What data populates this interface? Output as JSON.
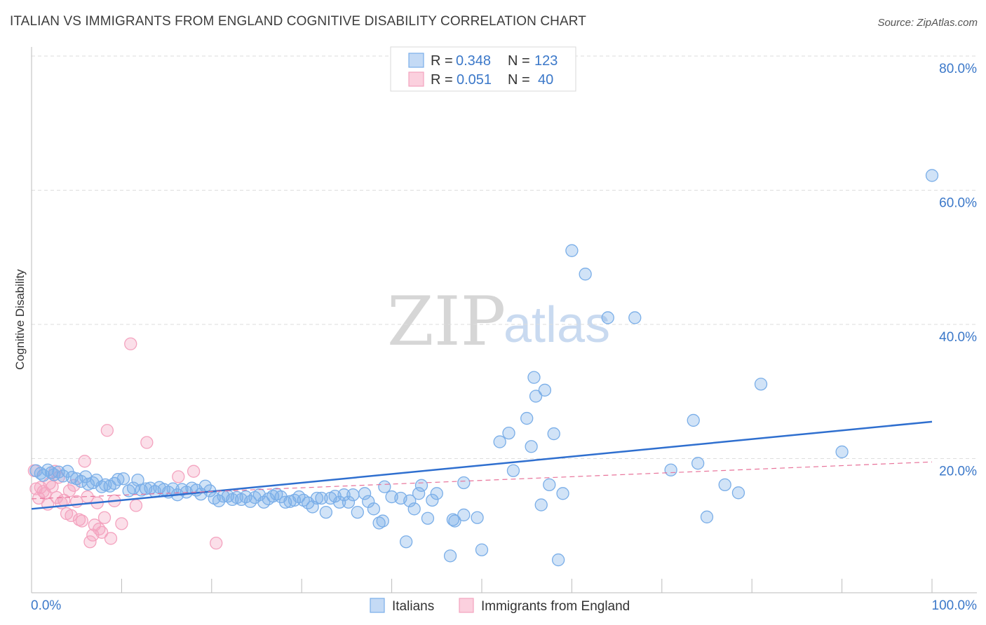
{
  "title": "ITALIAN VS IMMIGRANTS FROM ENGLAND COGNITIVE DISABILITY CORRELATION CHART",
  "source": "Source: ZipAtlas.com",
  "watermark": {
    "zip": "ZIP",
    "atlas": "atlas"
  },
  "legend_box": {
    "rows": [
      {
        "r_label": "R =",
        "r_value": "0.348",
        "n_label": "N =",
        "n_value": "123"
      },
      {
        "r_label": "R =",
        "r_value": "0.051",
        "n_label": "N =",
        "n_value": "40"
      }
    ]
  },
  "colors": {
    "italians": "#7aaee8",
    "italians_line": "#2f6fcf",
    "england": "#f4a3bf",
    "england_line": "#e8739a",
    "grid": "#dddddd"
  },
  "chart_data": {
    "type": "scatter",
    "title": "ITALIAN VS IMMIGRANTS FROM ENGLAND COGNITIVE DISABILITY CORRELATION CHART",
    "xlabel": "",
    "ylabel": "Cognitive Disability",
    "xlim": [
      0,
      100
    ],
    "ylim": [
      0,
      80
    ],
    "x_tick_labels": [
      "0.0%",
      "100.0%"
    ],
    "y_ticks": [
      20,
      40,
      60,
      80
    ],
    "y_tick_labels": [
      "20.0%",
      "40.0%",
      "60.0%",
      "80.0%"
    ],
    "grid": true,
    "legend_position": "bottom-center",
    "series": [
      {
        "name": "Italians",
        "r": 0.348,
        "n": 123,
        "trend": {
          "x": [
            0,
            100
          ],
          "y": [
            12.5,
            25.5
          ]
        },
        "points": [
          [
            0.5,
            18.2
          ],
          [
            1.0,
            17.8
          ],
          [
            1.3,
            17.5
          ],
          [
            1.8,
            18.3
          ],
          [
            2.2,
            17.9
          ],
          [
            2.5,
            17.6
          ],
          [
            3.0,
            18.0
          ],
          [
            3.5,
            17.4
          ],
          [
            4.0,
            18.1
          ],
          [
            4.5,
            17.2
          ],
          [
            5.0,
            17.0
          ],
          [
            5.5,
            16.6
          ],
          [
            6.0,
            17.3
          ],
          [
            6.3,
            16.2
          ],
          [
            6.8,
            16.4
          ],
          [
            7.2,
            16.8
          ],
          [
            7.8,
            15.8
          ],
          [
            8.2,
            16.1
          ],
          [
            8.7,
            15.9
          ],
          [
            9.2,
            16.3
          ],
          [
            9.6,
            16.9
          ],
          [
            10.2,
            17.0
          ],
          [
            10.8,
            15.2
          ],
          [
            11.3,
            15.6
          ],
          [
            11.8,
            16.8
          ],
          [
            12.2,
            15.3
          ],
          [
            12.7,
            15.5
          ],
          [
            13.2,
            15.6
          ],
          [
            13.7,
            15.1
          ],
          [
            14.2,
            15.7
          ],
          [
            14.7,
            15.4
          ],
          [
            15.2,
            15.0
          ],
          [
            15.7,
            15.5
          ],
          [
            16.2,
            14.6
          ],
          [
            16.7,
            15.4
          ],
          [
            17.2,
            15.0
          ],
          [
            17.8,
            15.6
          ],
          [
            18.3,
            15.3
          ],
          [
            18.8,
            14.7
          ],
          [
            19.3,
            15.9
          ],
          [
            19.8,
            15.2
          ],
          [
            20.3,
            14.1
          ],
          [
            20.8,
            13.7
          ],
          [
            21.3,
            14.4
          ],
          [
            21.8,
            14.4
          ],
          [
            22.3,
            13.9
          ],
          [
            22.8,
            14.2
          ],
          [
            23.3,
            13.9
          ],
          [
            23.8,
            14.3
          ],
          [
            24.3,
            13.6
          ],
          [
            24.8,
            14.2
          ],
          [
            25.3,
            14.6
          ],
          [
            25.8,
            13.5
          ],
          [
            26.3,
            14.0
          ],
          [
            26.8,
            14.4
          ],
          [
            27.2,
            14.7
          ],
          [
            27.7,
            14.3
          ],
          [
            28.2,
            13.5
          ],
          [
            28.7,
            13.6
          ],
          [
            29.2,
            13.8
          ],
          [
            29.7,
            14.3
          ],
          [
            30.2,
            13.8
          ],
          [
            30.7,
            13.4
          ],
          [
            31.2,
            12.8
          ],
          [
            31.7,
            14.1
          ],
          [
            32.2,
            14.1
          ],
          [
            32.7,
            12.0
          ],
          [
            33.2,
            14.1
          ],
          [
            33.7,
            14.4
          ],
          [
            34.2,
            13.5
          ],
          [
            34.7,
            14.6
          ],
          [
            35.2,
            13.5
          ],
          [
            35.7,
            14.6
          ],
          [
            36.2,
            12.0
          ],
          [
            37.0,
            14.8
          ],
          [
            37.4,
            13.6
          ],
          [
            38.0,
            12.5
          ],
          [
            38.6,
            10.4
          ],
          [
            39.0,
            10.7
          ],
          [
            39.2,
            15.8
          ],
          [
            40.0,
            14.3
          ],
          [
            41.0,
            14.1
          ],
          [
            41.6,
            7.6
          ],
          [
            42.0,
            13.7
          ],
          [
            42.5,
            12.5
          ],
          [
            43.0,
            14.8
          ],
          [
            43.3,
            16.0
          ],
          [
            44.0,
            11.1
          ],
          [
            44.5,
            13.8
          ],
          [
            45.0,
            14.8
          ],
          [
            46.5,
            5.5
          ],
          [
            46.8,
            10.9
          ],
          [
            47.0,
            10.7
          ],
          [
            48.0,
            11.6
          ],
          [
            48.0,
            16.4
          ],
          [
            49.5,
            11.2
          ],
          [
            50.0,
            6.4
          ],
          [
            52.0,
            22.5
          ],
          [
            53.0,
            23.8
          ],
          [
            53.5,
            18.2
          ],
          [
            55.0,
            26.0
          ],
          [
            55.5,
            21.8
          ],
          [
            55.8,
            32.1
          ],
          [
            56.0,
            29.3
          ],
          [
            56.6,
            13.1
          ],
          [
            57.0,
            30.2
          ],
          [
            57.5,
            16.1
          ],
          [
            58.0,
            23.7
          ],
          [
            58.5,
            4.9
          ],
          [
            59.0,
            14.8
          ],
          [
            60.0,
            51.0
          ],
          [
            61.5,
            47.5
          ],
          [
            64.0,
            41.0
          ],
          [
            67.0,
            41.0
          ],
          [
            71.0,
            18.3
          ],
          [
            73.5,
            25.7
          ],
          [
            74.0,
            19.3
          ],
          [
            75.0,
            11.3
          ],
          [
            77.0,
            16.1
          ],
          [
            78.5,
            14.9
          ],
          [
            81.0,
            31.1
          ],
          [
            90.0,
            21.0
          ],
          [
            100.0,
            62.2
          ]
        ]
      },
      {
        "name": "Immigrants from England",
        "r": 0.051,
        "n": 40,
        "trend": {
          "x": [
            0,
            100
          ],
          "y": [
            14.0,
            19.5
          ]
        },
        "points": [
          [
            0.3,
            18.2
          ],
          [
            0.5,
            15.5
          ],
          [
            0.8,
            14.1
          ],
          [
            1.0,
            15.7
          ],
          [
            1.3,
            15.1
          ],
          [
            1.5,
            14.8
          ],
          [
            1.8,
            13.2
          ],
          [
            2.0,
            16.3
          ],
          [
            2.3,
            15.8
          ],
          [
            2.6,
            18.1
          ],
          [
            2.8,
            14.2
          ],
          [
            3.0,
            17.2
          ],
          [
            3.3,
            13.4
          ],
          [
            3.6,
            13.8
          ],
          [
            3.9,
            11.8
          ],
          [
            4.2,
            15.2
          ],
          [
            4.4,
            11.5
          ],
          [
            4.7,
            16.0
          ],
          [
            5.0,
            13.6
          ],
          [
            5.3,
            10.9
          ],
          [
            5.6,
            10.7
          ],
          [
            5.9,
            19.6
          ],
          [
            6.2,
            14.3
          ],
          [
            6.5,
            7.6
          ],
          [
            6.8,
            8.6
          ],
          [
            7.0,
            10.1
          ],
          [
            7.3,
            13.4
          ],
          [
            7.5,
            9.5
          ],
          [
            7.8,
            9.0
          ],
          [
            8.1,
            11.2
          ],
          [
            8.4,
            24.2
          ],
          [
            8.8,
            8.1
          ],
          [
            9.2,
            13.7
          ],
          [
            10.0,
            10.3
          ],
          [
            11.0,
            37.1
          ],
          [
            11.6,
            13.0
          ],
          [
            12.8,
            22.4
          ],
          [
            16.3,
            17.3
          ],
          [
            18.0,
            18.1
          ],
          [
            20.5,
            7.4
          ]
        ]
      }
    ]
  },
  "bottom_legend": {
    "items": [
      "Italians",
      "Immigrants from England"
    ]
  }
}
